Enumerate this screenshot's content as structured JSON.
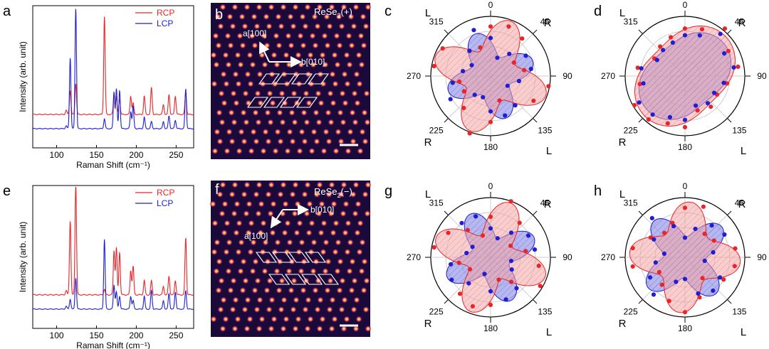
{
  "panels": {
    "a": "a",
    "b": "b",
    "c": "c",
    "d": "d",
    "e": "e",
    "f": "f",
    "g": "g",
    "h": "h"
  },
  "stm": {
    "b": {
      "label": "ReSe",
      "sub": "2",
      "sign": "(+)",
      "a_dir": "a[100]",
      "b_dir": "b[010]"
    },
    "f": {
      "label": "ReSe",
      "sub": "2",
      "sign": "(−)",
      "a_dir": "a[100]",
      "b_dir": "b[010]"
    }
  },
  "colors": {
    "rcp": "#e8262a",
    "lcp": "#1f1fd1",
    "rcp_fill": "#f2a8a8",
    "lcp_fill": "#8f92e6",
    "lattice": "#1a0a3a"
  },
  "polar_labels": {
    "angles": [
      "0",
      "45",
      "90",
      "135",
      "180",
      "225",
      "270",
      "315"
    ],
    "hand": [
      "L",
      "R",
      "R",
      "L"
    ]
  },
  "chart_data": [
    {
      "type": "line",
      "panel": "a",
      "title": "",
      "xlabel": "Raman Shift (cm⁻¹)",
      "ylabel": "Intensity (arb. unit)",
      "xlim": [
        70,
        272
      ],
      "xticks": [
        100,
        150,
        200,
        250
      ],
      "legend": "top-right",
      "peaks_x": [
        112,
        117,
        124,
        160,
        172,
        175,
        179,
        193,
        196,
        210,
        219,
        234,
        241,
        249,
        262
      ],
      "series": [
        {
          "name": "RCP",
          "color": "#e8262a",
          "offset": 0.215,
          "baseline": 0.02,
          "heights": [
            0.03,
            0.17,
            0.22,
            0.69,
            0.15,
            0.12,
            0.11,
            0.13,
            0.08,
            0.13,
            0.19,
            0.07,
            0.14,
            0.13,
            0.16
          ]
        },
        {
          "name": "LCP",
          "color": "#1f1fd1",
          "offset": 0.12,
          "baseline": 0.015,
          "heights": [
            0.02,
            0.5,
            0.85,
            0.07,
            0.26,
            0.28,
            0.27,
            0.12,
            0.16,
            0.08,
            0.05,
            0.05,
            0.09,
            0.06,
            0.28
          ]
        }
      ]
    },
    {
      "type": "line",
      "panel": "e",
      "title": "",
      "xlabel": "Raman Shift (cm⁻¹)",
      "ylabel": "Intensity (arb. unit)",
      "xlim": [
        70,
        272
      ],
      "xticks": [
        100,
        150,
        200,
        250
      ],
      "legend": "top-right",
      "peaks_x": [
        112,
        117,
        124,
        160,
        172,
        175,
        179,
        193,
        196,
        210,
        219,
        234,
        241,
        249,
        262
      ],
      "series": [
        {
          "name": "RCP",
          "color": "#e8262a",
          "offset": 0.215,
          "baseline": 0.02,
          "heights": [
            0.03,
            0.52,
            0.78,
            0.04,
            0.31,
            0.33,
            0.3,
            0.17,
            0.2,
            0.1,
            0.1,
            0.06,
            0.13,
            0.1,
            0.4
          ]
        },
        {
          "name": "LCP",
          "color": "#1f1fd1",
          "offset": 0.12,
          "baseline": 0.015,
          "heights": [
            0.02,
            0.07,
            0.22,
            0.49,
            0.17,
            0.12,
            0.09,
            0.09,
            0.06,
            0.09,
            0.13,
            0.06,
            0.11,
            0.12,
            0.13
          ]
        }
      ]
    },
    {
      "type": "polar",
      "panel": "c",
      "theta_ticks": [
        0,
        45,
        90,
        135,
        180,
        225,
        270,
        315
      ],
      "rings": 4,
      "series": [
        {
          "name": "RCP",
          "color": "#e8262a",
          "shape": "four-lobe",
          "orientation_deg": 20,
          "min": 0.45,
          "max": 0.98
        },
        {
          "name": "LCP",
          "color": "#1f1fd1",
          "shape": "four-lobe",
          "orientation_deg": 70,
          "min": 0.35,
          "max": 0.75
        }
      ]
    },
    {
      "type": "polar",
      "panel": "d",
      "theta_ticks": [
        0,
        45,
        90,
        135,
        180,
        225,
        270,
        315
      ],
      "rings": 4,
      "series": [
        {
          "name": "RCP",
          "color": "#e8262a",
          "shape": "two-lobe",
          "orientation_deg": 45,
          "min": 0.62,
          "max": 0.95
        },
        {
          "name": "LCP",
          "color": "#1f1fd1",
          "shape": "two-lobe",
          "orientation_deg": 50,
          "min": 0.55,
          "max": 0.85
        }
      ]
    },
    {
      "type": "polar",
      "panel": "g",
      "theta_ticks": [
        0,
        45,
        90,
        135,
        180,
        225,
        270,
        315
      ],
      "rings": 4,
      "series": [
        {
          "name": "RCP",
          "color": "#e8262a",
          "shape": "four-lobe",
          "orientation_deg": 20,
          "min": 0.4,
          "max": 0.97
        },
        {
          "name": "LCP",
          "color": "#1f1fd1",
          "shape": "four-lobe",
          "orientation_deg": -25,
          "min": 0.33,
          "max": 0.8
        }
      ]
    },
    {
      "type": "polar",
      "panel": "h",
      "theta_ticks": [
        0,
        45,
        90,
        135,
        180,
        225,
        270,
        315
      ],
      "rings": 4,
      "series": [
        {
          "name": "RCP",
          "color": "#e8262a",
          "shape": "four-lobe",
          "orientation_deg": 5,
          "min": 0.5,
          "max": 0.93
        },
        {
          "name": "LCP",
          "color": "#1f1fd1",
          "shape": "four-lobe",
          "orientation_deg": -40,
          "min": 0.35,
          "max": 0.8
        }
      ]
    }
  ]
}
